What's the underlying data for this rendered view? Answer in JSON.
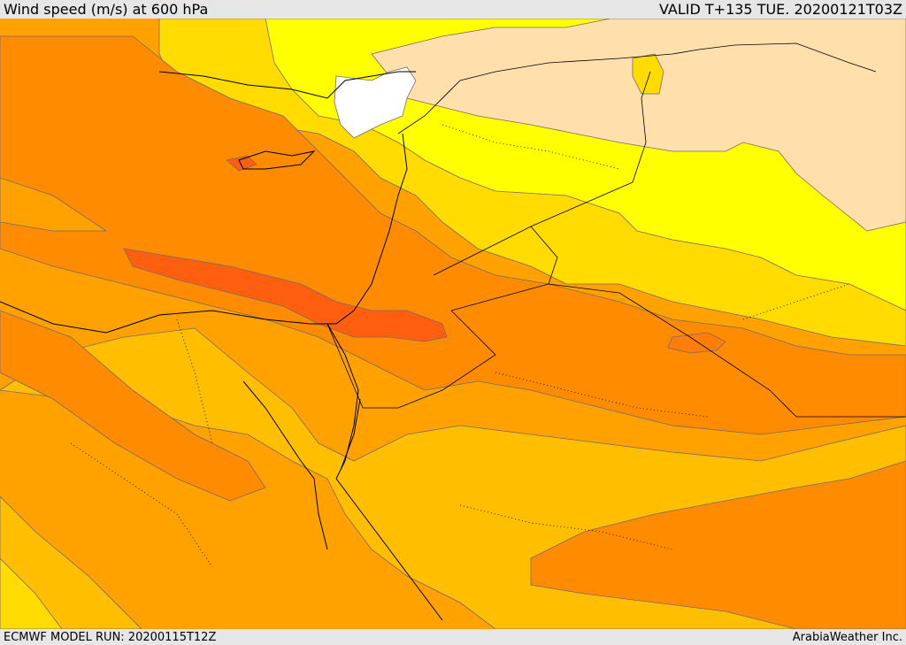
{
  "header": {
    "title": "Wind speed (m/s) at 600 hPa",
    "valid_time": "VALID T+135 TUE. 20200121T03Z"
  },
  "footer": {
    "model_run": "ECMWF MODEL RUN: 20200115T12Z",
    "credit": "ArabiaWeather Inc."
  },
  "palette": {
    "white": "#ffffff",
    "wheat": "#ffe0ac",
    "yellow": "#ffff00",
    "gold": "#ffdb00",
    "amber": "#ffbf00",
    "orange_light": "#ffa200",
    "orange": "#ff8c00",
    "orange_dark": "#ff7d0a",
    "red_orange": "#ff5f0f",
    "contour": "#7a6a6a",
    "coast": "#000000"
  }
}
